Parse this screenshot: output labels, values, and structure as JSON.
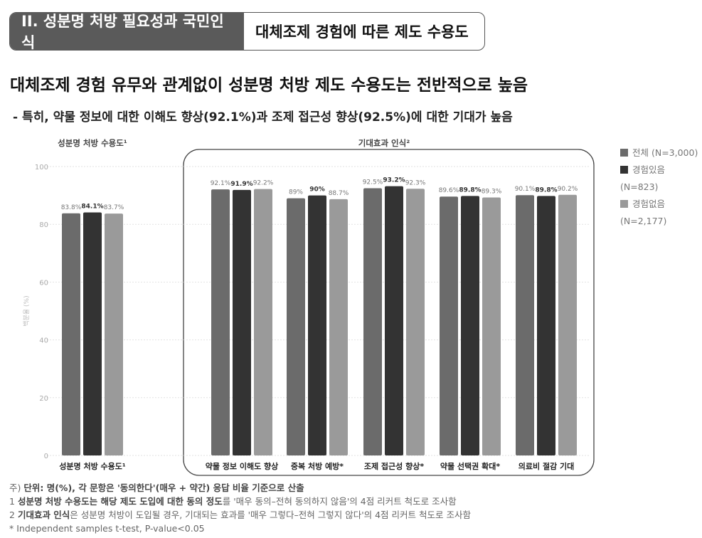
{
  "header": {
    "section": "II. 성분명 처방 필요성과 국민인식",
    "subsection": "대체조제 경험에 따른 제도 수용도"
  },
  "headline": "대체조제 경험 유무와 관계없이 성분명 처방 제도 수용도는 전반적으로 높음",
  "subheadline": "- 특히, 약물 정보에 대한 이해도 향상(92.1%)과 조제 접근성 향상(92.5%)에 대한 기대가 높음",
  "chart_data": {
    "type": "bar",
    "ylabel": "백분율 (%)",
    "ylim": [
      0,
      100
    ],
    "yticks": [
      0,
      20,
      40,
      60,
      80,
      100
    ],
    "panel_titles": [
      "성분명 처방 수용도¹",
      "기대효과 인식²"
    ],
    "categories": [
      "성분명 처방 수용도¹",
      "약물 정보 이해도 향상",
      "중복 처방 예방*",
      "조제 접근성 향상*",
      "약물 선택권 확대*",
      "의료비 절감 기대"
    ],
    "series": [
      {
        "name": "전체 (N=3,000)",
        "color": "#6b6b6b",
        "values": [
          83.8,
          92.1,
          89,
          92.5,
          89.6,
          90.1
        ],
        "labels": [
          "83.8%",
          "92.1%",
          "89%",
          "92.5%",
          "89.6%",
          "90.1%"
        ]
      },
      {
        "name": "경험있음 (N=823)",
        "color": "#333333",
        "values": [
          84.1,
          91.9,
          90,
          93.2,
          89.8,
          89.8
        ],
        "labels": [
          "84.1%",
          "91.9%",
          "90%",
          "93.2%",
          "89.8%",
          "89.8%"
        ]
      },
      {
        "name": "경험없음 (N=2,177)",
        "color": "#9a9a9a",
        "values": [
          83.7,
          92.2,
          88.7,
          92.3,
          89.3,
          90.2
        ],
        "labels": [
          "83.7%",
          "92.2%",
          "88.7%",
          "92.3%",
          "89.3%",
          "90.2%"
        ]
      }
    ],
    "legend_position": "right"
  },
  "notes": {
    "n0a": "주) ",
    "n0b": "단위: 명(%), 각 문항은 '동의한다'(매우 + 약간) 응답 비율 기준으로 산출",
    "n1a": "1 ",
    "n1b": "성분명 처방 수용도는 해당 제도 도입에 대한 동의 정도",
    "n1c": "를 '매우 동의–전혀 동의하지 않음'의 4점 리커트 척도로 조사함",
    "n2a": "2 ",
    "n2b": "기대효과 인식",
    "n2c": "은 성분명 처방이 도입될 경우, 기대되는 효과를 '매우 그렇다–전혀 그렇지 않다'의 4점 리커트 척도로 조사함",
    "n3": "* Independent samples t-test, P-value<0.05"
  }
}
